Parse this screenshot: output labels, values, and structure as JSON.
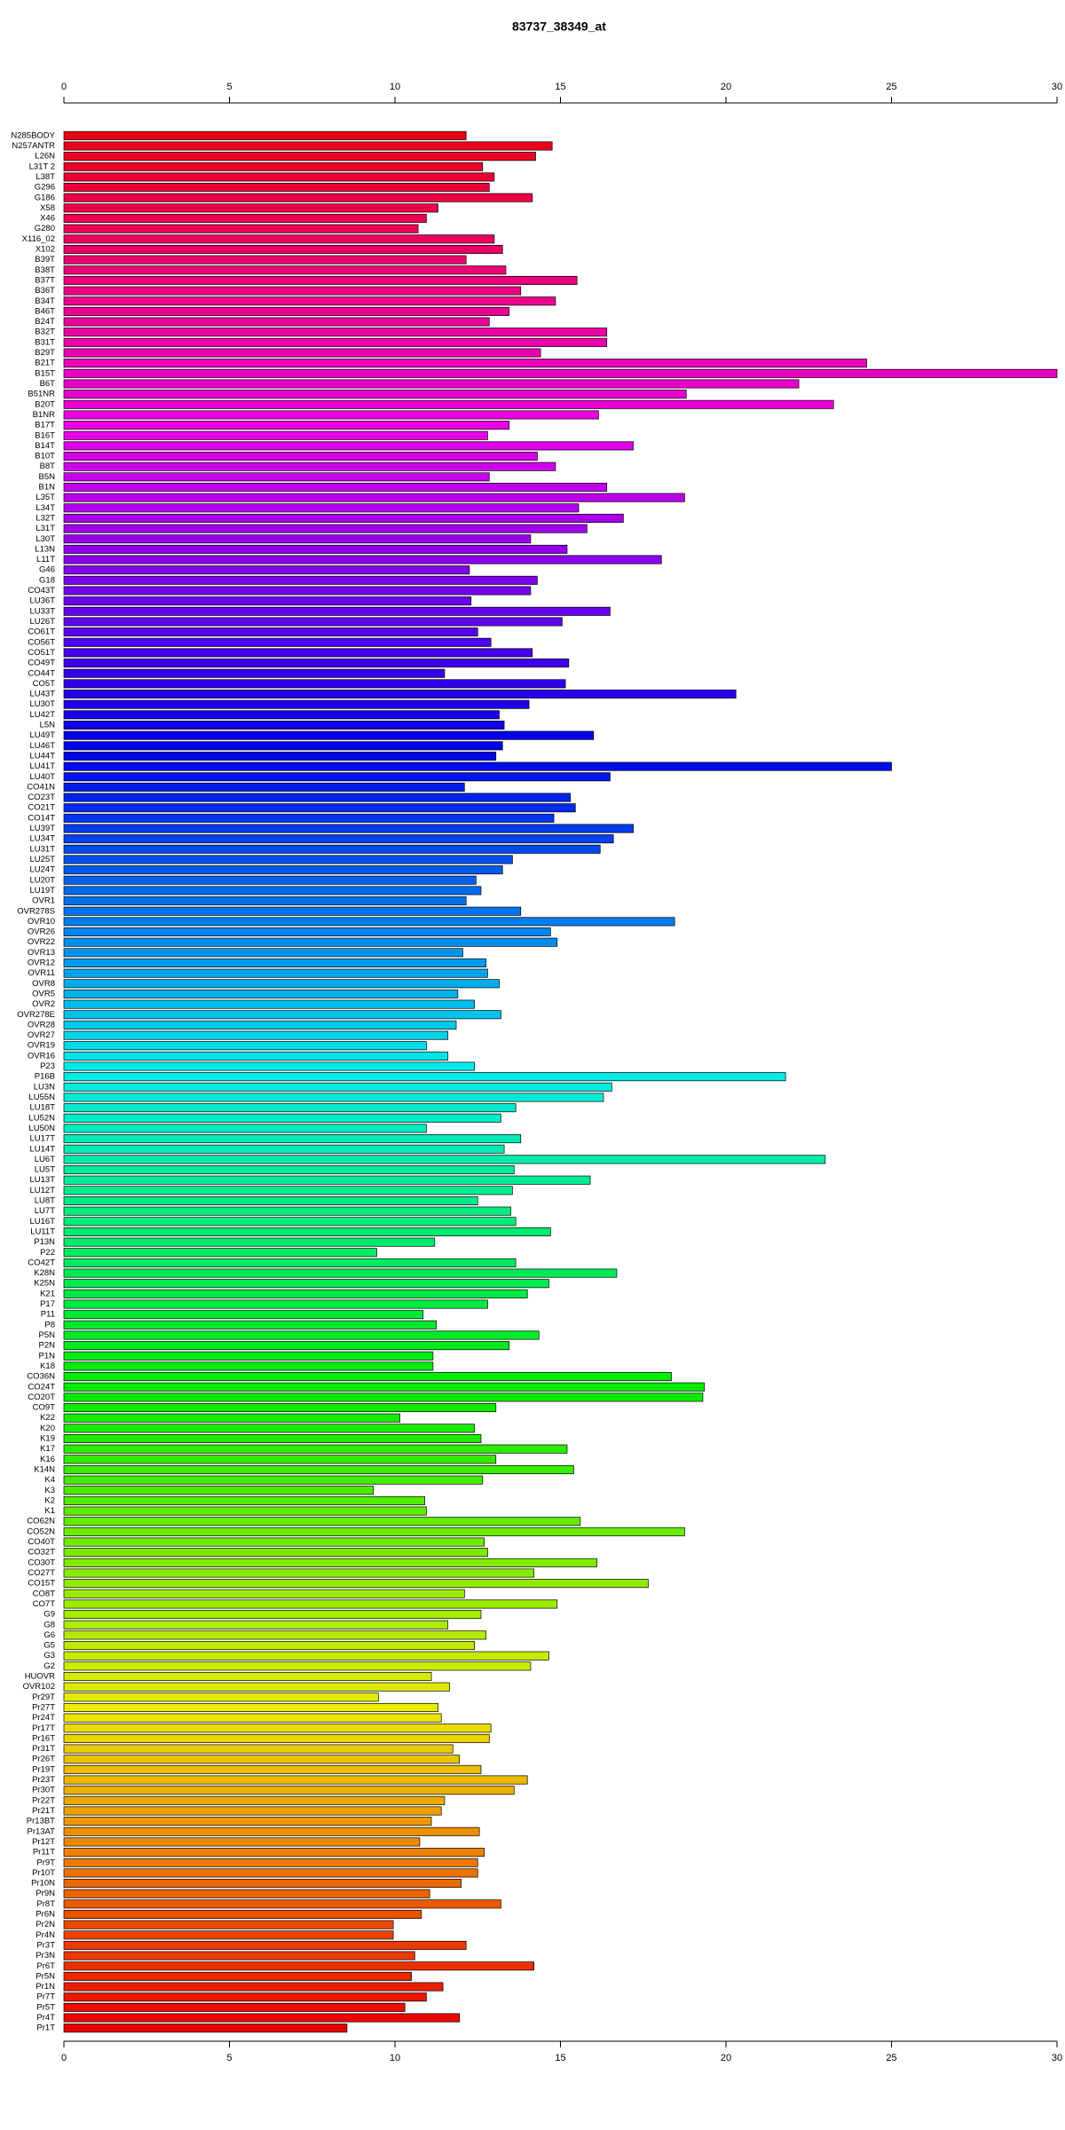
{
  "chart_data": {
    "type": "barh",
    "title": "83737_38349_at",
    "categories": [
      "N285BODY",
      "N257ANTR",
      "L26N",
      "L31T 2",
      "L38T",
      "G296",
      "G186",
      "X58",
      "X46",
      "G280",
      "X116_02",
      "X102",
      "B39T",
      "B38T",
      "B37T",
      "B36T",
      "B34T",
      "B46T",
      "B24T",
      "B32T",
      "B31T",
      "B29T",
      "B21T",
      "B15T",
      "B6T",
      "B51NR",
      "B20T",
      "B1NR",
      "B17T",
      "B16T",
      "B14T",
      "B10T",
      "B8T",
      "B5N",
      "B1N",
      "L35T",
      "L34T",
      "L32T",
      "L31T",
      "L30T",
      "L13N",
      "L11T",
      "G46",
      "G18",
      "CO43T",
      "LU36T",
      "LU33T",
      "LU26T",
      "CO61T",
      "CO56T",
      "CO51T",
      "CO49T",
      "CO44T",
      "CO5T",
      "LU43T",
      "LU30T",
      "LU42T",
      "L5N",
      "LU49T",
      "LU46T",
      "LU44T",
      "LU41T",
      "LU40T",
      "CO41N",
      "CO23T",
      "CO21T",
      "CO14T",
      "LU39T",
      "LU34T",
      "LU31T",
      "LU25T",
      "LU24T",
      "LU20T",
      "LU19T",
      "OVR1",
      "OVR278S",
      "OVR10",
      "OVR26",
      "OVR22",
      "OVR13",
      "OVR12",
      "OVR11",
      "OVR8",
      "OVR5",
      "OVR2",
      "OVR278E",
      "OVR28",
      "OVR27",
      "OVR19",
      "OVR16",
      "P23",
      "P16B",
      "LU3N",
      "LU55N",
      "LU18T",
      "LU52N",
      "LU50N",
      "LU17T",
      "LU14T",
      "LU6T",
      "LU5T",
      "LU13T",
      "LU12T",
      "LU8T",
      "LU7T",
      "LU16T",
      "LU11T",
      "P13N",
      "P22",
      "CO42T",
      "K28N",
      "K25N",
      "K21",
      "P17",
      "P11",
      "P8",
      "P5N",
      "P2N",
      "P1N",
      "K18",
      "CO36N",
      "CO24T",
      "CO20T",
      "CO9T",
      "K22",
      "K20",
      "K19",
      "K17",
      "K16",
      "K14N",
      "K4",
      "K3",
      "K2",
      "K1",
      "CO62N",
      "CO52N",
      "CO40T",
      "CO32T",
      "CO30T",
      "CO27T",
      "CO15T",
      "CO8T",
      "CO7T",
      "G9",
      "G8",
      "G6",
      "G5",
      "G3",
      "G2",
      "HUOVR",
      "OVR102",
      "Pr29T",
      "Pr27T",
      "Pr24T",
      "Pr17T",
      "Pr16T",
      "Pr31T",
      "Pr26T",
      "Pr19T",
      "Pr23T",
      "Pr30T",
      "Pr22T",
      "Pr21T",
      "Pr13BT",
      "Pr13AT",
      "Pr12T",
      "Pr11T",
      "Pr9T",
      "Pr10T",
      "Pr10N",
      "Pr9N",
      "Pr8T",
      "Pr6N",
      "Pr2N",
      "Pr4N",
      "Pr3T",
      "Pr3N",
      "Pr6T",
      "Pr5N",
      "Pr1N",
      "Pr7T",
      "Pr5T",
      "Pr4T",
      "Pr1T"
    ],
    "values": [
      12.15,
      14.75,
      14.25,
      12.65,
      13.0,
      12.85,
      14.15,
      11.3,
      10.95,
      10.7,
      13.0,
      13.25,
      12.15,
      13.35,
      15.5,
      13.8,
      14.85,
      13.45,
      12.85,
      16.4,
      16.4,
      14.4,
      24.25,
      30.0,
      22.2,
      18.8,
      23.25,
      16.15,
      13.45,
      12.8,
      17.2,
      14.3,
      14.85,
      12.85,
      16.4,
      18.75,
      15.55,
      16.9,
      15.8,
      14.1,
      15.2,
      18.05,
      12.25,
      14.3,
      14.1,
      12.3,
      16.5,
      15.05,
      12.5,
      12.9,
      14.15,
      15.25,
      11.5,
      15.15,
      20.3,
      14.05,
      13.15,
      13.3,
      16.0,
      13.25,
      13.05,
      25.0,
      16.5,
      12.1,
      15.3,
      15.45,
      14.8,
      17.2,
      16.6,
      16.2,
      13.55,
      13.25,
      12.45,
      12.6,
      12.15,
      13.8,
      18.45,
      14.7,
      14.9,
      12.05,
      12.75,
      12.8,
      13.15,
      11.9,
      12.4,
      13.2,
      11.85,
      11.6,
      10.95,
      11.6,
      12.4,
      21.8,
      16.55,
      16.3,
      13.65,
      13.2,
      10.95,
      13.8,
      13.3,
      23.0,
      13.6,
      15.9,
      13.55,
      12.5,
      13.5,
      13.65,
      14.7,
      11.2,
      9.45,
      13.65,
      16.7,
      14.65,
      14.0,
      12.8,
      10.85,
      11.25,
      14.35,
      13.45,
      11.15,
      11.15,
      18.35,
      19.35,
      19.3,
      13.05,
      10.15,
      12.4,
      12.6,
      15.2,
      13.05,
      15.4,
      12.65,
      9.35,
      10.9,
      10.95,
      15.6,
      18.75,
      12.7,
      12.8,
      16.1,
      14.2,
      17.65,
      12.1,
      14.9,
      12.6,
      11.6,
      12.75,
      12.4,
      14.65,
      14.1,
      11.1,
      11.65,
      9.5,
      11.3,
      11.4,
      12.9,
      12.85,
      11.75,
      11.95,
      12.6,
      14.0,
      13.6,
      11.5,
      11.4,
      11.1,
      12.55,
      10.75,
      12.7,
      12.5,
      12.5,
      12.0,
      11.05,
      13.2,
      10.8,
      9.95,
      9.95,
      12.15,
      10.6,
      14.2,
      10.5,
      11.45,
      10.95,
      10.3,
      11.95,
      8.55
    ],
    "colors": [
      "hsl(355,100%,46%)",
      "hsl(353,100%,46%)",
      "hsl(351,100%,46%)",
      "hsl(349,100%,46%)",
      "hsl(347,100%,46%)",
      "hsl(345,100%,46%)",
      "hsl(343,100%,46%)",
      "hsl(341,100%,46%)",
      "hsl(339,100%,46%)",
      "hsl(338,100%,46%)",
      "hsl(336,100%,46%)",
      "hsl(334,100%,46%)",
      "hsl(332,100%,46%)",
      "hsl(330,100%,46%)",
      "hsl(328,100%,46%)",
      "hsl(326,100%,46%)",
      "hsl(324,100%,46%)",
      "hsl(322,100%,46%)",
      "hsl(320,100%,46%)",
      "hsl(318,100%,46%)",
      "hsl(316,100%,46%)",
      "hsl(314,100%,46%)",
      "hsl(312,100%,46%)",
      "hsl(310,100%,46%)",
      "hsl(308,100%,46%)",
      "hsl(307,100%,46%)",
      "hsl(305,100%,46%)",
      "hsl(303,100%,46%)",
      "hsl(301,100%,46%)",
      "hsl(299,100%,46%)",
      "hsl(297,100%,46%)",
      "hsl(295,100%,46%)",
      "hsl(293,100%,46%)",
      "hsl(291,100%,46%)",
      "hsl(289,100%,46%)",
      "hsl(287,100%,46%)",
      "hsl(285,100%,46%)",
      "hsl(283,100%,46%)",
      "hsl(281,100%,46%)",
      "hsl(279,100%,46%)",
      "hsl(277,100%,46%)",
      "hsl(275,100%,46%)",
      "hsl(274,100%,46%)",
      "hsl(272,100%,46%)",
      "hsl(270,100%,46%)",
      "hsl(268,100%,46%)",
      "hsl(266,100%,46%)",
      "hsl(264,100%,46%)",
      "hsl(262,100%,46%)",
      "hsl(260,100%,46%)",
      "hsl(258,100%,46%)",
      "hsl(256,100%,46%)",
      "hsl(254,100%,46%)",
      "hsl(252,100%,46%)",
      "hsl(250,100%,46%)",
      "hsl(248,100%,46%)",
      "hsl(246,100%,46%)",
      "hsl(244,100%,46%)",
      "hsl(242,100%,46%)",
      "hsl(241,100%,46%)",
      "hsl(239,100%,46%)",
      "hsl(237,100%,46%)",
      "hsl(235,100%,46%)",
      "hsl(233,100%,46%)",
      "hsl(231,100%,46%)",
      "hsl(229,100%,46%)",
      "hsl(227,100%,46%)",
      "hsl(225,100%,46%)",
      "hsl(223,100%,46%)",
      "hsl(221,100%,46%)",
      "hsl(219,100%,46%)",
      "hsl(217,100%,46%)",
      "hsl(215,100%,46%)",
      "hsl(213,100%,46%)",
      "hsl(211,100%,46%)",
      "hsl(210,100%,46%)",
      "hsl(208,100%,46%)",
      "hsl(206,100%,46%)",
      "hsl(204,100%,46%)",
      "hsl(202,100%,46%)",
      "hsl(200,100%,46%)",
      "hsl(198,100%,46%)",
      "hsl(196,100%,46%)",
      "hsl(194,100%,46%)",
      "hsl(192,100%,46%)",
      "hsl(190,100%,46%)",
      "hsl(188,100%,46%)",
      "hsl(186,100%,46%)",
      "hsl(184,100%,46%)",
      "hsl(182,100%,46%)",
      "hsl(180,100%,46%)",
      "hsl(178,100%,46%)",
      "hsl(177,100%,46%)",
      "hsl(175,100%,46%)",
      "hsl(173,100%,46%)",
      "hsl(171,100%,46%)",
      "hsl(169,100%,46%)",
      "hsl(167,100%,46%)",
      "hsl(165,100%,46%)",
      "hsl(163,100%,46%)",
      "hsl(161,100%,46%)",
      "hsl(159,100%,46%)",
      "hsl(157,100%,46%)",
      "hsl(155,100%,46%)",
      "hsl(153,100%,46%)",
      "hsl(151,100%,46%)",
      "hsl(149,100%,46%)",
      "hsl(147,100%,46%)",
      "hsl(145,100%,46%)",
      "hsl(144,100%,46%)",
      "hsl(142,100%,46%)",
      "hsl(140,100%,46%)",
      "hsl(138,100%,46%)",
      "hsl(136,100%,46%)",
      "hsl(134,100%,46%)",
      "hsl(132,100%,46%)",
      "hsl(130,100%,46%)",
      "hsl(128,100%,46%)",
      "hsl(126,100%,46%)",
      "hsl(124,100%,46%)",
      "hsl(122,100%,46%)",
      "hsl(120,100%,46%)",
      "hsl(118,100%,46%)",
      "hsl(116,100%,46%)",
      "hsl(114,100%,46%)",
      "hsl(113,100%,46%)",
      "hsl(111,100%,46%)",
      "hsl(109,100%,46%)",
      "hsl(107,100%,46%)",
      "hsl(105,100%,46%)",
      "hsl(103,100%,46%)",
      "hsl(101,100%,46%)",
      "hsl(99,100%,46%)",
      "hsl(97,100%,46%)",
      "hsl(95,100%,46%)",
      "hsl(93,100%,46%)",
      "hsl(91,100%,46%)",
      "hsl(89,100%,46%)",
      "hsl(87,100%,46%)",
      "hsl(85,100%,46%)",
      "hsl(83,100%,46%)",
      "hsl(81,100%,46%)",
      "hsl(80,100%,46%)",
      "hsl(78,100%,46%)",
      "hsl(76,100%,46%)",
      "hsl(74,100%,46%)",
      "hsl(72,100%,46%)",
      "hsl(70,100%,46%)",
      "hsl(68,100%,46%)",
      "hsl(66,100%,46%)",
      "hsl(64,100%,46%)",
      "hsl(62,100%,46%)",
      "hsl(60,100%,46%)",
      "hsl(58,100%,46%)",
      "hsl(56,100%,46%)",
      "hsl(54,100%,46%)",
      "hsl(52,100%,46%)",
      "hsl(50,100%,46%)",
      "hsl(48,100%,46%)",
      "hsl(47,100%,46%)",
      "hsl(45,100%,46%)",
      "hsl(43,100%,46%)",
      "hsl(41,100%,46%)",
      "hsl(39,100%,46%)",
      "hsl(37,100%,46%)",
      "hsl(35,100%,46%)",
      "hsl(33,100%,46%)",
      "hsl(31,100%,46%)",
      "hsl(29,100%,46%)",
      "hsl(27,100%,46%)",
      "hsl(25,100%,46%)",
      "hsl(23,100%,46%)",
      "hsl(21,100%,46%)",
      "hsl(19,100%,46%)",
      "hsl(17,100%,46%)",
      "hsl(15,100%,46%)",
      "hsl(14,100%,46%)",
      "hsl(12,100%,46%)",
      "hsl(10,100%,46%)",
      "hsl(8,100%,46%)",
      "hsl(6,100%,46%)",
      "hsl(4,100%,46%)",
      "hsl(2,100%,46%)",
      "hsl(0,100%,46%)"
    ],
    "xlim": [
      0,
      30
    ],
    "xticks": [
      0,
      5,
      10,
      15,
      20,
      25,
      30
    ]
  }
}
